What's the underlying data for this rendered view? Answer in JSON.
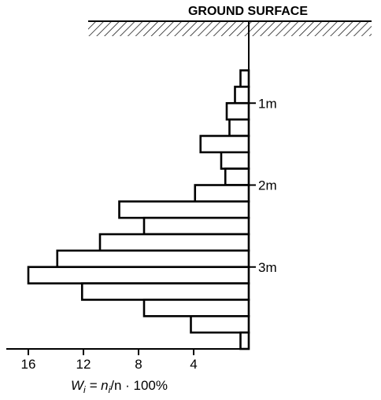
{
  "chart_data": {
    "type": "bar",
    "orientation": "horizontal",
    "title": "GROUND SURFACE",
    "xlabel_parts": {
      "W": "W",
      "W_sub": "i",
      "eq": " = n",
      "n_sub": "i",
      "rest": "/n · 100%"
    },
    "x_ticks": [
      "16",
      "12",
      "8",
      "4"
    ],
    "x_tick_values": [
      16,
      12,
      8,
      4
    ],
    "xlim": [
      0,
      17
    ],
    "depth_ticks": [
      "1m",
      "2m",
      "3m"
    ],
    "depth_tick_values": [
      1,
      2,
      3
    ],
    "depth_unit": "m",
    "ylim": [
      0,
      4.0
    ],
    "bin_width": 0.2,
    "bins_top": [
      0.6,
      0.8,
      1.0,
      1.2,
      1.4,
      1.6,
      1.8,
      2.0,
      2.2,
      2.4,
      2.6,
      2.8,
      3.0,
      3.2,
      3.4,
      3.6,
      3.8
    ],
    "values": [
      0.6,
      1.0,
      1.6,
      1.4,
      3.5,
      2.0,
      1.7,
      3.9,
      9.4,
      7.6,
      10.8,
      13.9,
      16.0,
      12.1,
      7.6,
      4.2,
      0.6
    ],
    "grid": false,
    "hatch_ground": true
  }
}
